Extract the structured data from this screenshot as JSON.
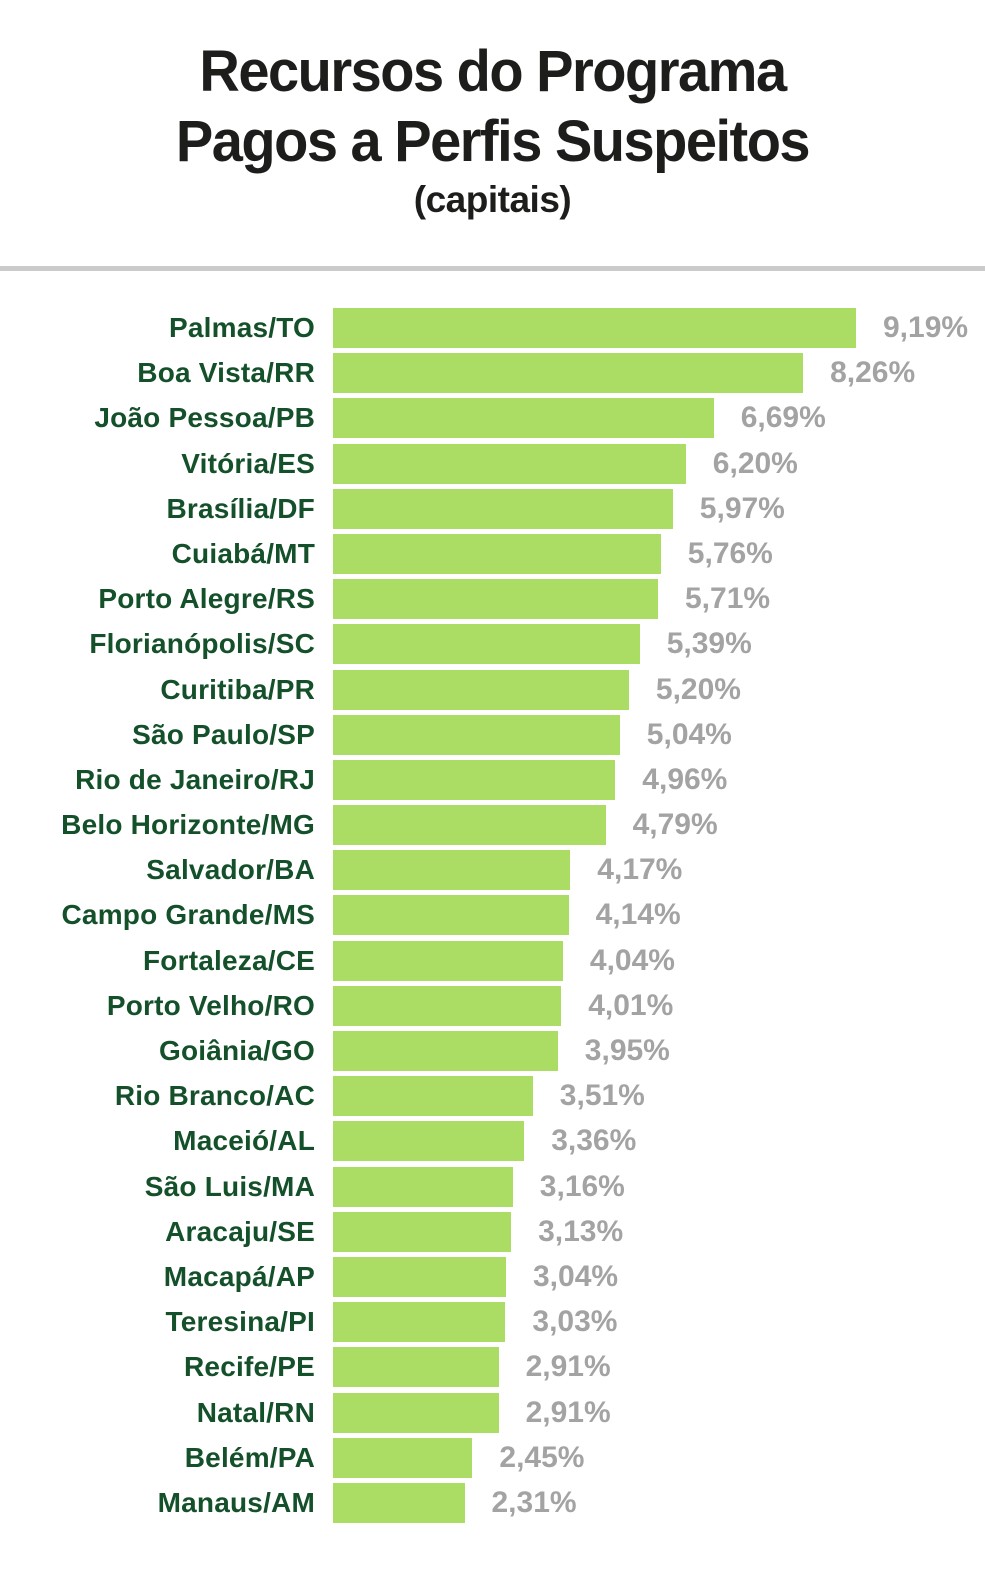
{
  "header": {
    "title_line1": "Recursos do Programa",
    "title_line2": "Pagos a Perfis Suspeitos",
    "subtitle": "(capitais)"
  },
  "colors": {
    "background": "#ffffff",
    "title": "#1d1d1b",
    "category_label": "#14502a",
    "bar": "#abdc64",
    "value_label": "#a3a3a3",
    "divider": "#cbcbcb"
  },
  "chart_data": {
    "type": "bar",
    "orientation": "horizontal",
    "title": "Recursos do Programa Pagos a Perfis Suspeitos",
    "subtitle": "(capitais)",
    "xlabel": "",
    "ylabel": "",
    "xlim": [
      0,
      9.19
    ],
    "grid": false,
    "legend": false,
    "value_format": "percent, comma decimal separator",
    "categories": [
      "Palmas/TO",
      "Boa Vista/RR",
      "João Pessoa/PB",
      "Vitória/ES",
      "Brasília/DF",
      "Cuiabá/MT",
      "Porto Alegre/RS",
      "Florianópolis/SC",
      "Curitiba/PR",
      "São Paulo/SP",
      "Rio de Janeiro/RJ",
      "Belo Horizonte/MG",
      "Salvador/BA",
      "Campo Grande/MS",
      "Fortaleza/CE",
      "Porto Velho/RO",
      "Goiânia/GO",
      "Rio Branco/AC",
      "Maceió/AL",
      "São Luis/MA",
      "Aracaju/SE",
      "Macapá/AP",
      "Teresina/PI",
      "Recife/PE",
      "Natal/RN",
      "Belém/PA",
      "Manaus/AM"
    ],
    "values": [
      9.19,
      8.26,
      6.69,
      6.2,
      5.97,
      5.76,
      5.71,
      5.39,
      5.2,
      5.04,
      4.96,
      4.79,
      4.17,
      4.14,
      4.04,
      4.01,
      3.95,
      3.51,
      3.36,
      3.16,
      3.13,
      3.04,
      3.03,
      2.91,
      2.91,
      2.45,
      2.31
    ],
    "value_labels": [
      "9,19%",
      "8,26%",
      "6,69%",
      "6,20%",
      "5,97%",
      "5,76%",
      "5,71%",
      "5,39%",
      "5,20%",
      "5,04%",
      "4,96%",
      "4,79%",
      "4,17%",
      "4,14%",
      "4,04%",
      "4,01%",
      "3,95%",
      "3,51%",
      "3,36%",
      "3,16%",
      "3,13%",
      "3,04%",
      "3,03%",
      "2,91%",
      "2,91%",
      "2,45%",
      "2,31%"
    ]
  }
}
